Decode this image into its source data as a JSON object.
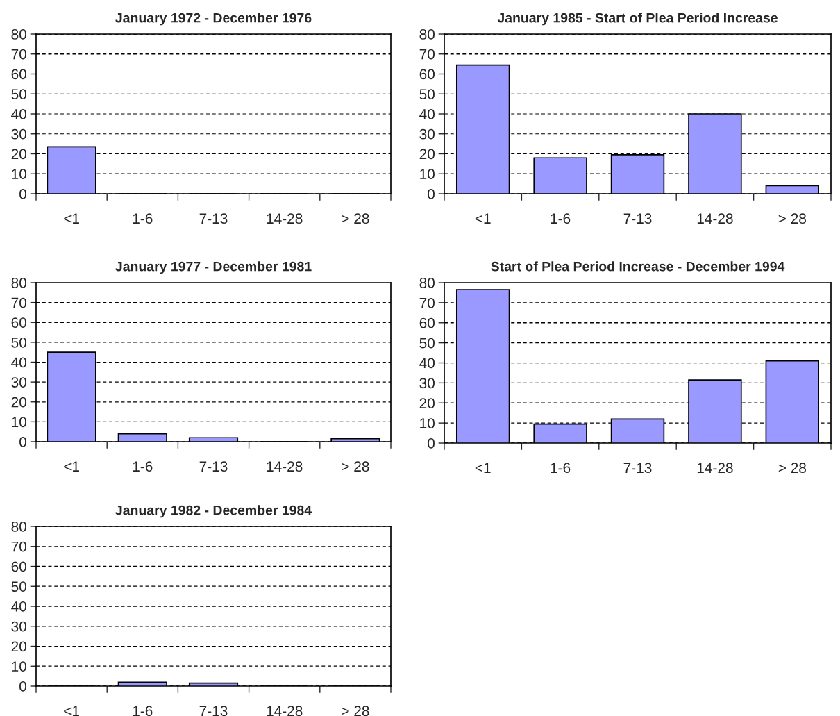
{
  "chart_data": [
    {
      "type": "bar",
      "title": "January 1972 - December 1976",
      "categories": [
        "<1",
        "1-6",
        "7-13",
        "14-28",
        "> 28"
      ],
      "values": [
        23.5,
        0,
        0,
        0,
        0
      ],
      "color": "#9999ff",
      "ylim": [
        0,
        80
      ],
      "yticks": [
        0,
        10,
        20,
        30,
        40,
        50,
        60,
        70,
        80
      ],
      "grid": "y"
    },
    {
      "type": "bar",
      "title": "January 1985 - Start of Plea Period Increase",
      "categories": [
        "<1",
        "1-6",
        "7-13",
        "14-28",
        "> 28"
      ],
      "values": [
        64.5,
        18,
        19.5,
        40,
        4
      ],
      "color": "#9999ff",
      "ylim": [
        0,
        80
      ],
      "yticks": [
        0,
        10,
        20,
        30,
        40,
        50,
        60,
        70,
        80
      ],
      "grid": "y"
    },
    {
      "type": "bar",
      "title": "January 1977 - December 1981",
      "categories": [
        "<1",
        "1-6",
        "7-13",
        "14-28",
        "> 28"
      ],
      "values": [
        45,
        4,
        2,
        0,
        1.5
      ],
      "color": "#9999ff",
      "ylim": [
        0,
        80
      ],
      "yticks": [
        0,
        10,
        20,
        30,
        40,
        50,
        60,
        70,
        80
      ],
      "grid": "y"
    },
    {
      "type": "bar",
      "title": "Start of Plea Period Increase - December 1994",
      "categories": [
        "<1",
        "1-6",
        "7-13",
        "14-28",
        "> 28"
      ],
      "values": [
        76.5,
        9.5,
        12,
        31.5,
        41
      ],
      "color": "#9999ff",
      "ylim": [
        0,
        80
      ],
      "yticks": [
        0,
        10,
        20,
        30,
        40,
        50,
        60,
        70,
        80
      ],
      "grid": "y"
    },
    {
      "type": "bar",
      "title": "January 1982 - December 1984",
      "categories": [
        "<1",
        "1-6",
        "7-13",
        "14-28",
        "> 28"
      ],
      "values": [
        0,
        2,
        1.5,
        0,
        0
      ],
      "color": "#9999ff",
      "ylim": [
        0,
        80
      ],
      "yticks": [
        0,
        10,
        20,
        30,
        40,
        50,
        60,
        70,
        80
      ],
      "grid": "y"
    }
  ]
}
